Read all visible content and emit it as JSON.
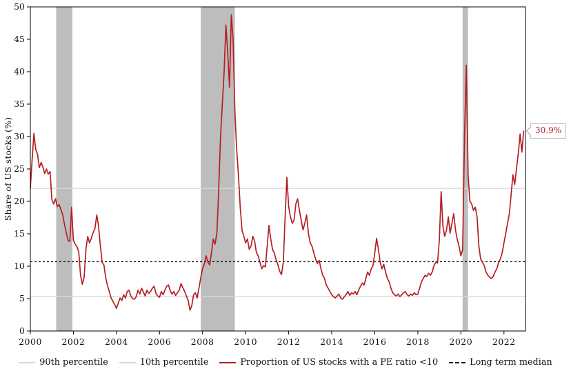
{
  "figure": {
    "ylabel": "Share of US stocks (%)",
    "annotation_label": "30.9%"
  },
  "legend": {
    "items": [
      {
        "label": "90th percentile",
        "color": "#d9d9d9",
        "style": "solid"
      },
      {
        "label": "10th percentile",
        "color": "#d9d9d9",
        "style": "solid"
      },
      {
        "label": "Proportion of US stocks with a PE ratio <10",
        "color": "#b41f24",
        "style": "solid"
      },
      {
        "label": "Long term median",
        "color": "#1a1a1a",
        "style": "dashed"
      }
    ]
  },
  "chart_data": {
    "type": "line",
    "title": "",
    "xlabel": "",
    "ylabel": "Share of US stocks (%)",
    "xlim": [
      2000,
      2023
    ],
    "ylim": [
      0,
      50
    ],
    "x_ticks": [
      2000,
      2002,
      2004,
      2006,
      2008,
      2010,
      2012,
      2014,
      2016,
      2018,
      2020,
      2022
    ],
    "y_ticks": [
      0,
      5,
      10,
      15,
      20,
      25,
      30,
      35,
      40,
      45,
      50
    ],
    "grid": false,
    "legend_position": "bottom",
    "band_color": "#bdbdbd",
    "recession_bands": [
      [
        2001.2,
        2001.95
      ],
      [
        2007.92,
        2009.5
      ],
      [
        2020.08,
        2020.33
      ]
    ],
    "reference_lines": [
      {
        "name": "90th percentile",
        "value": 22.0,
        "color": "#d9d9d9",
        "style": "solid"
      },
      {
        "name": "10th percentile",
        "value": 5.3,
        "color": "#d9d9d9",
        "style": "solid"
      },
      {
        "name": "Long term median",
        "value": 10.7,
        "color": "#1a1a1a",
        "style": "dashed"
      }
    ],
    "annotation": {
      "label": "30.9%",
      "value": 30.9
    },
    "x_start_year": 2000,
    "x_step_months": 1,
    "series": [
      {
        "name": "Proportion of US stocks with a PE ratio <10",
        "color": "#b41f24",
        "values": [
          22.0,
          26.5,
          30.5,
          28.0,
          27.3,
          25.2,
          26.0,
          25.3,
          24.3,
          25.0,
          24.2,
          24.6,
          20.3,
          19.6,
          20.4,
          19.2,
          19.5,
          18.8,
          18.0,
          16.5,
          15.2,
          14.0,
          13.8,
          19.1,
          14.0,
          13.4,
          13.0,
          12.2,
          8.6,
          7.2,
          8.3,
          12.6,
          14.6,
          13.6,
          14.3,
          15.2,
          15.8,
          17.9,
          16.2,
          13.2,
          10.6,
          10.2,
          8.2,
          7.0,
          6.1,
          5.1,
          4.6,
          4.1,
          3.5,
          4.3,
          5.1,
          4.7,
          5.6,
          5.1,
          6.1,
          6.3,
          5.4,
          5.0,
          4.9,
          5.3,
          6.3,
          5.7,
          6.6,
          6.0,
          5.4,
          6.3,
          5.8,
          6.1,
          6.6,
          6.9,
          5.8,
          5.4,
          5.2,
          6.1,
          5.6,
          6.3,
          6.9,
          7.1,
          6.2,
          5.7,
          6.1,
          5.5,
          5.9,
          6.3,
          7.3,
          6.7,
          6.1,
          5.4,
          4.7,
          3.2,
          3.9,
          5.6,
          5.9,
          5.1,
          6.6,
          8.2,
          9.6,
          10.3,
          11.6,
          10.6,
          10.2,
          12.1,
          14.2,
          13.4,
          15.2,
          22.0,
          30.0,
          35.0,
          40.0,
          47.2,
          43.0,
          37.6,
          48.8,
          45.0,
          34.0,
          28.0,
          24.0,
          19.0,
          15.5,
          14.6,
          13.6,
          14.2,
          12.6,
          13.1,
          14.6,
          13.9,
          12.1,
          11.6,
          10.6,
          9.6,
          10.1,
          9.9,
          13.0,
          16.3,
          14.2,
          12.6,
          12.0,
          11.0,
          10.2,
          9.2,
          8.7,
          10.6,
          17.5,
          23.7,
          19.2,
          17.6,
          16.6,
          17.1,
          19.6,
          20.4,
          18.6,
          17.1,
          15.6,
          16.6,
          17.9,
          15.1,
          13.6,
          13.1,
          12.1,
          11.1,
          10.4,
          10.9,
          9.6,
          8.6,
          8.1,
          7.1,
          6.6,
          6.1,
          5.6,
          5.3,
          5.1,
          5.4,
          5.7,
          5.1,
          4.9,
          5.3,
          5.6,
          6.1,
          5.5,
          5.9,
          5.7,
          6.1,
          5.6,
          6.3,
          6.9,
          7.4,
          7.1,
          8.1,
          9.1,
          8.6,
          9.6,
          10.1,
          12.1,
          14.3,
          12.6,
          10.6,
          9.6,
          10.3,
          9.1,
          8.1,
          7.6,
          6.6,
          5.9,
          5.6,
          5.4,
          5.7,
          5.3,
          5.6,
          5.9,
          6.1,
          5.6,
          5.4,
          5.7,
          5.5,
          5.9,
          5.6,
          5.7,
          6.6,
          7.6,
          8.1,
          8.6,
          8.4,
          8.9,
          8.6,
          9.1,
          10.1,
          10.6,
          10.5,
          14.1,
          21.5,
          16.1,
          14.6,
          15.6,
          17.6,
          15.1,
          16.6,
          18.1,
          15.6,
          14.1,
          13.1,
          11.6,
          12.6,
          30.0,
          41.0,
          24.0,
          20.0,
          19.6,
          18.6,
          19.1,
          17.6,
          13.1,
          11.1,
          10.6,
          10.1,
          9.1,
          8.6,
          8.3,
          8.1,
          8.4,
          9.1,
          9.6,
          10.6,
          11.1,
          12.1,
          13.6,
          15.1,
          16.6,
          18.1,
          21.1,
          24.1,
          22.6,
          25.1,
          27.4,
          30.4,
          27.6,
          30.9
        ]
      }
    ]
  }
}
